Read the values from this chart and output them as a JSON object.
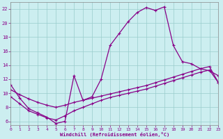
{
  "xlabel": "Windchill (Refroidissement éolien,°C)",
  "xlim": [
    0,
    23
  ],
  "ylim": [
    5.5,
    23
  ],
  "xticks": [
    0,
    1,
    2,
    3,
    4,
    5,
    6,
    7,
    8,
    9,
    10,
    11,
    12,
    13,
    14,
    15,
    16,
    17,
    18,
    19,
    20,
    21,
    22,
    23
  ],
  "yticks": [
    6,
    8,
    10,
    12,
    14,
    16,
    18,
    20,
    22
  ],
  "bg_color": "#cceef0",
  "line_color": "#880088",
  "grid_color": "#99cccc",
  "curve_x": [
    0,
    1,
    2,
    3,
    4,
    5,
    6,
    7,
    8,
    9,
    10,
    11,
    12,
    13,
    14,
    15,
    16,
    17,
    18,
    19,
    20,
    21,
    22,
    23
  ],
  "curve_y": [
    11.2,
    9.3,
    7.8,
    7.2,
    6.6,
    5.7,
    6.0,
    12.5,
    9.0,
    9.5,
    12.0,
    16.8,
    18.5,
    20.2,
    21.5,
    22.2,
    21.8,
    22.3,
    16.8,
    14.5,
    14.2,
    13.5,
    13.2,
    12.5
  ],
  "line2_x": [
    0,
    1,
    2,
    3,
    4,
    5,
    6,
    7,
    8,
    9,
    10,
    11,
    12,
    13,
    14,
    15,
    16,
    17,
    18,
    19,
    20,
    21,
    22,
    23
  ],
  "line2_y": [
    9.5,
    8.5,
    7.5,
    7.0,
    6.5,
    6.2,
    6.8,
    7.5,
    8.0,
    8.5,
    9.0,
    9.4,
    9.7,
    10.0,
    10.3,
    10.6,
    11.0,
    11.4,
    11.8,
    12.2,
    12.6,
    13.0,
    13.3,
    11.5
  ],
  "line3_x": [
    0,
    1,
    2,
    3,
    4,
    5,
    6,
    7,
    8,
    9,
    10,
    11,
    12,
    13,
    14,
    15,
    16,
    17,
    18,
    19,
    20,
    21,
    22,
    23
  ],
  "line3_y": [
    10.5,
    9.8,
    9.2,
    8.7,
    8.3,
    8.0,
    8.3,
    8.7,
    9.0,
    9.3,
    9.6,
    9.9,
    10.2,
    10.5,
    10.8,
    11.1,
    11.5,
    11.9,
    12.3,
    12.7,
    13.1,
    13.5,
    13.8,
    11.5
  ]
}
